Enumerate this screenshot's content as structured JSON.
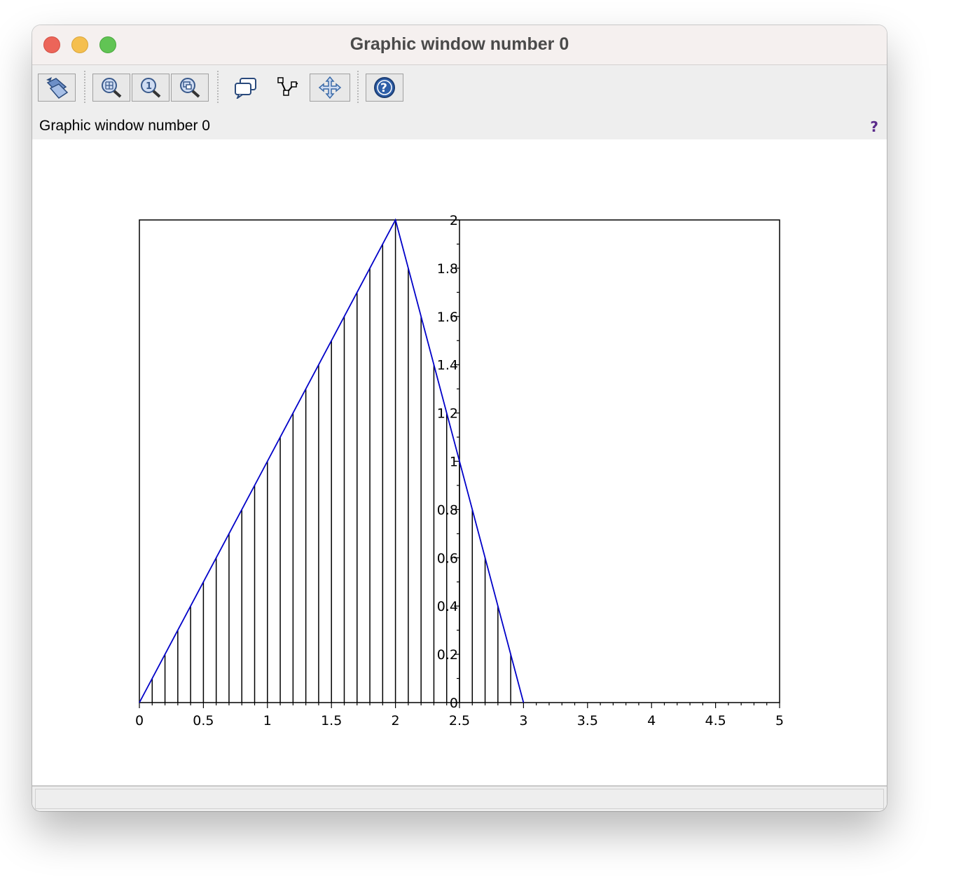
{
  "window": {
    "title": "Graphic window number 0"
  },
  "toolbar": {
    "buttons": [
      {
        "name": "rotate-tool-button",
        "icon": "rotate-icon"
      },
      {
        "name": "zoom-in-button",
        "icon": "zoom-grid-icon"
      },
      {
        "name": "zoom-one-button",
        "icon": "zoom-one-icon"
      },
      {
        "name": "zoom-out-button",
        "icon": "zoom-window-icon"
      },
      {
        "name": "datatip-button",
        "icon": "speech-bubbles-icon"
      },
      {
        "name": "datatip-edit-button",
        "icon": "polyline-icon"
      },
      {
        "name": "pan-button",
        "icon": "move-arrows-icon"
      },
      {
        "name": "help-button",
        "icon": "help-circle-icon"
      }
    ]
  },
  "infobar": {
    "label": "Graphic window number 0",
    "help_glyph": "?"
  },
  "statusbar": {
    "text": ""
  },
  "colors": {
    "curve": "#0000c8",
    "stems": "#000000",
    "axes": "#000000"
  },
  "chart_data": {
    "type": "line",
    "title": "",
    "xlabel": "",
    "ylabel": "",
    "xlim": [
      0,
      5
    ],
    "ylim": [
      0,
      2
    ],
    "x_ticks": [
      "0",
      "0.5",
      "1",
      "1.5",
      "2",
      "2.5",
      "3",
      "3.5",
      "4",
      "4.5",
      "5"
    ],
    "y_ticks": [
      "0",
      "0.2",
      "0.4",
      "0.6",
      "0.8",
      "1",
      "1.2",
      "1.4",
      "1.6",
      "1.8",
      "2"
    ],
    "y_axis_at_x": 2.5,
    "grid": false,
    "series": [
      {
        "x": [
          0,
          2,
          3
        ],
        "y": [
          0,
          2,
          0
        ]
      }
    ],
    "stems": {
      "x": [
        0.1,
        0.2,
        0.3,
        0.4,
        0.5,
        0.6,
        0.7,
        0.8,
        0.9,
        1.0,
        1.1,
        1.2,
        1.3,
        1.4,
        1.5,
        1.6,
        1.7,
        1.8,
        1.9,
        2.0,
        2.1,
        2.2,
        2.3,
        2.4,
        2.5,
        2.6,
        2.7,
        2.8,
        2.9
      ],
      "y": [
        0.1,
        0.2,
        0.3,
        0.4,
        0.5,
        0.6,
        0.7,
        0.8,
        0.9,
        1.0,
        1.1,
        1.2,
        1.3,
        1.4,
        1.5,
        1.6,
        1.7,
        1.8,
        1.9,
        2.0,
        1.8,
        1.6,
        1.4,
        1.2,
        1.0,
        0.8,
        0.6,
        0.4,
        0.2
      ]
    }
  }
}
